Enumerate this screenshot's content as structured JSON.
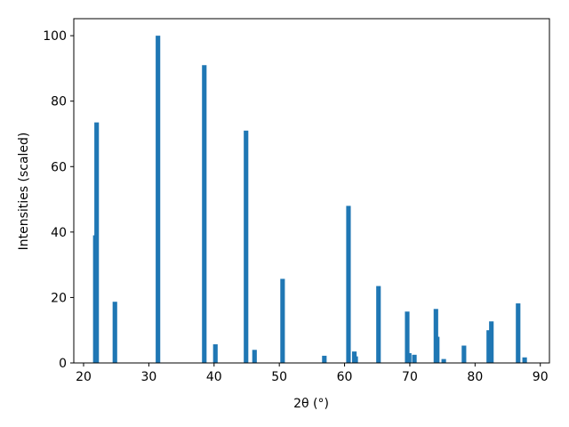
{
  "chart_data": {
    "type": "bar",
    "xlabel": "2θ (°)",
    "ylabel": "Intensities (scaled)",
    "x": [
      21.8,
      22.0,
      24.8,
      31.4,
      38.5,
      40.2,
      44.9,
      46.2,
      50.5,
      56.9,
      60.6,
      61.5,
      61.7,
      65.2,
      69.6,
      69.9,
      70.7,
      74.0,
      74.2,
      75.2,
      78.3,
      82.1,
      82.5,
      86.6,
      87.6
    ],
    "values": [
      39,
      73.5,
      18.7,
      100,
      91,
      5.7,
      71,
      4,
      25.7,
      2.2,
      48,
      3.5,
      2,
      23.5,
      15.7,
      3,
      2.5,
      16.5,
      8,
      1.2,
      5.3,
      10,
      12.7,
      18.2,
      1.7
    ],
    "color": "#1f77b4",
    "xlim": [
      18.5,
      91.4
    ],
    "ylim": [
      0,
      105.2
    ],
    "xticks": [
      20,
      30,
      40,
      50,
      60,
      70,
      80,
      90
    ],
    "yticks": [
      0,
      20,
      40,
      60,
      80,
      100
    ]
  }
}
